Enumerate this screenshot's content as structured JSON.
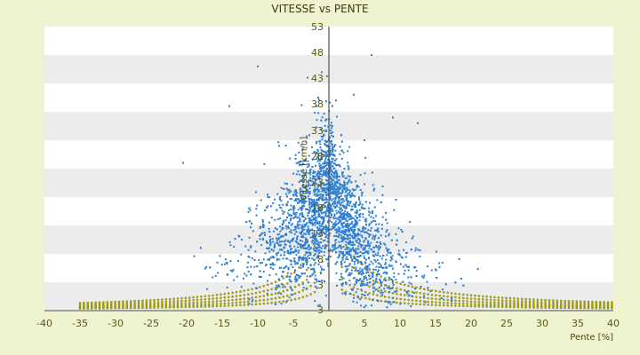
{
  "chart_data": {
    "type": "scatter",
    "title": "VITESSE vs PENTE",
    "xlabel": "Pente [%]",
    "ylabel": "Vitesse [km/h]",
    "xlim": [
      -40,
      40
    ],
    "ylim": [
      3,
      53
    ],
    "x_ticks": [
      "-40",
      "-35",
      "-30",
      "-25",
      "-20",
      "-15",
      "-10",
      "-5",
      "0",
      "5",
      "10",
      "15",
      "20",
      "25",
      "30",
      "35",
      "40"
    ],
    "y_ticks": [
      "3",
      "3",
      "8",
      "13",
      "18",
      "23",
      "28",
      "33",
      "38",
      "43",
      "48",
      "53"
    ],
    "colors": {
      "background": "#eff3cf",
      "plot_band_light": "#ffffff",
      "plot_band_dark": "#ececec",
      "measured": "#2f80d4",
      "model": "#b7b400",
      "axis": "#4f4f4f"
    },
    "series": [
      {
        "name": "",
        "color_key": "measured",
        "description_visible": false,
        "cloud": {
          "center_x": 0,
          "scale_x": 4,
          "center_y": 15,
          "max_y": 48,
          "count": 3000
        },
        "sample_points": [
          [
            -10,
            46
          ],
          [
            6,
            48
          ],
          [
            -14,
            39
          ],
          [
            3.5,
            41
          ],
          [
            9,
            37
          ],
          [
            12.5,
            36
          ],
          [
            -20.5,
            29
          ],
          [
            -3,
            44
          ],
          [
            -1,
            45
          ],
          [
            1,
            40
          ],
          [
            -7,
            32
          ],
          [
            5,
            33
          ]
        ]
      },
      {
        "name": "",
        "color_key": "model",
        "curves": [
          {
            "slope_k": 60,
            "offset": 4
          },
          {
            "slope_k": 90,
            "offset": 4
          },
          {
            "slope_k": 125,
            "offset": 4
          },
          {
            "slope_k": 165,
            "offset": 4
          },
          {
            "slope_k": 210,
            "offset": 4
          }
        ],
        "x_range": [
          -35,
          40
        ]
      }
    ],
    "grid": true,
    "legend": "none"
  }
}
